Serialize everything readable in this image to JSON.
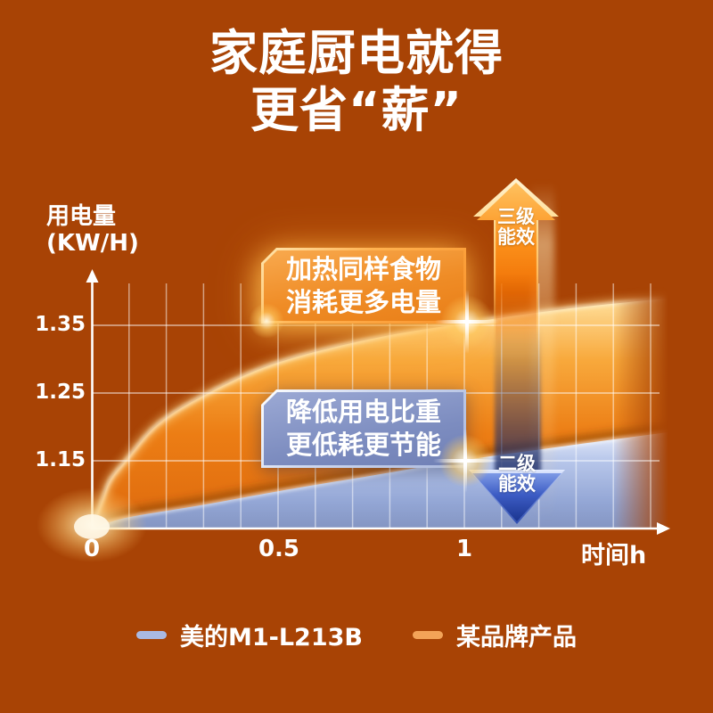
{
  "page": {
    "background": "#a84305"
  },
  "title": {
    "line1": "家庭厨电就得",
    "line2": "更省“薪”"
  },
  "chart": {
    "y_axis_title_line1": "用电量",
    "y_axis_title_line2": "(KW/H)",
    "x_axis_title": "时间h",
    "y_ticks": [
      "1.35",
      "1.25",
      "1.15"
    ],
    "x_ticks": [
      "0",
      "0.5",
      "1"
    ]
  },
  "callouts": {
    "orange": {
      "line1": "加热同样食物",
      "line2": "消耗更多电量"
    },
    "blue": {
      "line1": "降低用电比重",
      "line2": "更低耗更节能"
    }
  },
  "arrows": {
    "up": {
      "line1": "三级",
      "line2": "能效"
    },
    "down": {
      "line1": "二级",
      "line2": "能效"
    }
  },
  "legend": [
    {
      "label": "美的M1-L213B",
      "color": "#aab9e2"
    },
    {
      "label": "某品牌产品",
      "color": "#f3a358"
    }
  ],
  "chart_data": {
    "type": "area",
    "x_unit": "h",
    "y_unit": "KW/H",
    "xlabel": "时间h",
    "ylabel": "用电量(KW/H)",
    "x_ticks": [
      0,
      0.5,
      1
    ],
    "y_ticks": [
      1.15,
      1.25,
      1.35
    ],
    "x_range": [
      0,
      1.667
    ],
    "y_baseline": 1.05,
    "grid": {
      "x_step": 0.1,
      "x_grid_max": 1.5
    },
    "series": [
      {
        "name": "某品牌产品",
        "color": "#f3a358",
        "points": [
          [
            0,
            1.05
          ],
          [
            0.029,
            1.093
          ],
          [
            0.05,
            1.122
          ],
          [
            0.091,
            1.15
          ],
          [
            0.18,
            1.205
          ],
          [
            0.32,
            1.252
          ],
          [
            0.5,
            1.295
          ],
          [
            0.75,
            1.33
          ],
          [
            1.0,
            1.353
          ],
          [
            1.3,
            1.376
          ],
          [
            1.667,
            1.396
          ]
        ]
      },
      {
        "name": "美的M1-L213B",
        "color": "#aab9e2",
        "points": [
          [
            0,
            1.05
          ],
          [
            0.04,
            1.058
          ],
          [
            0.112,
            1.068
          ],
          [
            0.3,
            1.085
          ],
          [
            0.5,
            1.105
          ],
          [
            0.75,
            1.128
          ],
          [
            1.0,
            1.151
          ],
          [
            1.3,
            1.174
          ],
          [
            1.667,
            1.201
          ]
        ]
      }
    ],
    "annotations": [
      "加热同样食物 消耗更多电量",
      "降低用电比重 更低耗更节能",
      "三级能效",
      "二级能效"
    ],
    "legend_position": "bottom"
  }
}
